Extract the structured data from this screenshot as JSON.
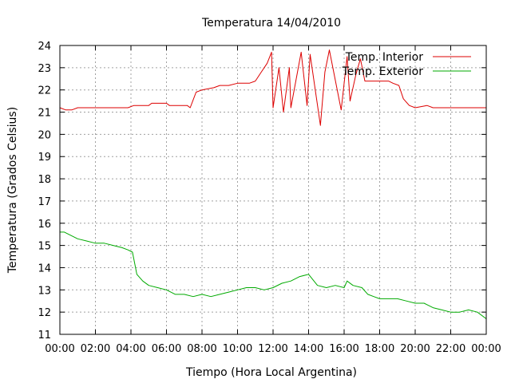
{
  "chart_data": {
    "type": "line",
    "title": "Temperatura 14/04/2010",
    "xlabel": "Tiempo (Hora Local Argentina)",
    "ylabel": "Temperatura (Grados Celsius)",
    "xlim": [
      "00:00",
      "24:00"
    ],
    "ylim": [
      11,
      24
    ],
    "grid": true,
    "legend_position": "top-right",
    "x_tick_labels": [
      "00:00",
      "02:00",
      "04:00",
      "06:00",
      "08:00",
      "10:00",
      "12:00",
      "14:00",
      "16:00",
      "18:00",
      "20:00",
      "22:00",
      "00:00"
    ],
    "y_tick_labels": [
      "11",
      "12",
      "13",
      "14",
      "15",
      "16",
      "17",
      "18",
      "19",
      "20",
      "21",
      "22",
      "23",
      "24"
    ],
    "series": [
      {
        "name": "Temp. Interior",
        "color": "#dd0000",
        "x": [
          "00:00",
          "00:20",
          "00:40",
          "01:00",
          "03:50",
          "04:10",
          "05:00",
          "05:10",
          "06:00",
          "06:10",
          "07:10",
          "07:20",
          "07:40",
          "08:00",
          "08:40",
          "09:00",
          "09:30",
          "10:00",
          "10:40",
          "11:00",
          "11:20",
          "11:40",
          "11:55",
          "12:00",
          "12:20",
          "12:35",
          "12:55",
          "13:00",
          "13:35",
          "13:55",
          "14:05",
          "14:40",
          "14:55",
          "15:10",
          "15:50",
          "16:10",
          "16:20",
          "16:40",
          "16:55",
          "17:10",
          "17:30",
          "18:00",
          "18:30",
          "18:45",
          "19:05",
          "19:20",
          "19:40",
          "20:00",
          "20:40",
          "21:00",
          "21:20",
          "24:00"
        ],
        "values": [
          21.2,
          21.1,
          21.1,
          21.2,
          21.2,
          21.3,
          21.3,
          21.4,
          21.4,
          21.3,
          21.3,
          21.2,
          21.9,
          22.0,
          22.1,
          22.2,
          22.2,
          22.3,
          22.3,
          22.4,
          22.8,
          23.2,
          23.7,
          21.2,
          23.0,
          21.0,
          23.0,
          21.2,
          23.7,
          21.3,
          23.6,
          20.4,
          22.8,
          23.8,
          21.1,
          23.5,
          21.5,
          22.7,
          23.4,
          22.4,
          22.4,
          22.4,
          22.4,
          22.3,
          22.2,
          21.6,
          21.3,
          21.2,
          21.3,
          21.2,
          21.2,
          21.2
        ]
      },
      {
        "name": "Temp. Exterior",
        "color": "#00aa00",
        "x": [
          "00:00",
          "00:15",
          "00:30",
          "01:00",
          "01:30",
          "02:00",
          "02:30",
          "03:00",
          "03:30",
          "03:50",
          "04:05",
          "04:20",
          "04:40",
          "05:00",
          "05:30",
          "06:00",
          "06:30",
          "07:00",
          "07:30",
          "08:00",
          "08:30",
          "09:00",
          "09:30",
          "10:00",
          "10:30",
          "11:00",
          "11:30",
          "12:00",
          "12:30",
          "13:00",
          "13:30",
          "14:00",
          "14:30",
          "15:00",
          "15:30",
          "16:00",
          "16:10",
          "16:30",
          "17:00",
          "17:20",
          "17:40",
          "18:00",
          "18:30",
          "19:00",
          "19:30",
          "20:00",
          "20:30",
          "21:00",
          "21:30",
          "22:00",
          "22:30",
          "23:00",
          "23:30",
          "24:00"
        ],
        "values": [
          15.6,
          15.6,
          15.5,
          15.3,
          15.2,
          15.1,
          15.1,
          15.0,
          14.9,
          14.8,
          14.7,
          13.7,
          13.4,
          13.2,
          13.1,
          13.0,
          12.8,
          12.8,
          12.7,
          12.8,
          12.7,
          12.8,
          12.9,
          13.0,
          13.1,
          13.1,
          13.0,
          13.1,
          13.3,
          13.4,
          13.6,
          13.7,
          13.2,
          13.1,
          13.2,
          13.1,
          13.4,
          13.2,
          13.1,
          12.8,
          12.7,
          12.6,
          12.6,
          12.6,
          12.5,
          12.4,
          12.4,
          12.2,
          12.1,
          12.0,
          12.0,
          12.1,
          12.0,
          11.7
        ]
      }
    ]
  }
}
